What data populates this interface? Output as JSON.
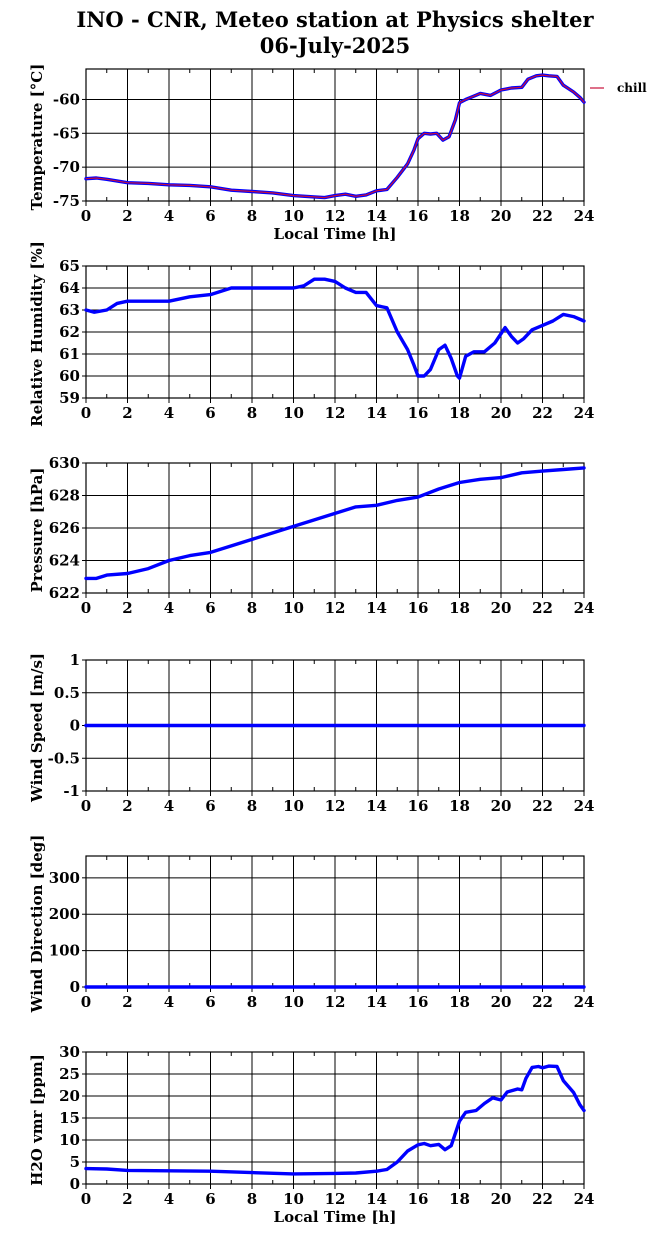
{
  "title": {
    "line1": "INO - CNR, Meteo station at Physics shelter",
    "line2": "06-July-2025"
  },
  "colors": {
    "series_main": "#0000ff",
    "series_chill": "#c8103a",
    "grid": "#000000"
  },
  "chart_data": [
    {
      "type": "line",
      "ylabel": "Temperature [°C]",
      "xlabel": "Local Time [h]",
      "xlim": [
        0,
        24
      ],
      "ylim": [
        -75,
        -55.5
      ],
      "xticks": [
        0,
        2,
        4,
        6,
        8,
        10,
        12,
        14,
        16,
        18,
        20,
        22,
        24
      ],
      "yticks": [
        -75,
        -70,
        -65,
        -60
      ],
      "legend": {
        "position": "right",
        "entries": [
          "chill"
        ]
      },
      "grid": true,
      "series": [
        {
          "color": "#0000ff",
          "x": [
            0,
            0.5,
            1,
            2,
            3,
            4,
            5,
            6,
            7,
            8,
            9,
            10,
            11,
            11.5,
            12,
            12.5,
            13,
            13.5,
            14,
            14.5,
            15,
            15.5,
            15.8,
            16,
            16.3,
            16.6,
            16.9,
            17.2,
            17.5,
            17.8,
            18,
            18.3,
            18.7,
            19,
            19.5,
            20,
            20.5,
            21,
            21.3,
            21.7,
            22,
            22.3,
            22.7,
            23,
            23.5,
            23.8,
            24
          ],
          "values": [
            -71.7,
            -71.6,
            -71.8,
            -72.3,
            -72.4,
            -72.6,
            -72.7,
            -72.9,
            -73.4,
            -73.6,
            -73.8,
            -74.2,
            -74.4,
            -74.5,
            -74.2,
            -74.0,
            -74.3,
            -74.1,
            -73.5,
            -73.3,
            -71.5,
            -69.5,
            -67.5,
            -65.8,
            -65.0,
            -65.1,
            -65.0,
            -66.0,
            -65.5,
            -63.0,
            -60.5,
            -60.0,
            -59.5,
            -59.1,
            -59.4,
            -58.6,
            -58.3,
            -58.2,
            -57.0,
            -56.5,
            -56.4,
            -56.5,
            -56.6,
            -57.9,
            -58.9,
            -59.7,
            -60.4
          ]
        },
        {
          "color": "#c8103a",
          "x": [
            0,
            0.5,
            1,
            2,
            3,
            4,
            5,
            6,
            7,
            8,
            9,
            10,
            11,
            11.5,
            12,
            12.5,
            13,
            13.5,
            14,
            14.5,
            15,
            15.5,
            15.8,
            16,
            16.3,
            16.6,
            16.9,
            17.2,
            17.5,
            17.8,
            18,
            18.3,
            18.7,
            19,
            19.5,
            20,
            20.5,
            21,
            21.3,
            21.7,
            22,
            22.3,
            22.7,
            23,
            23.5,
            23.8,
            24
          ],
          "values": [
            -71.7,
            -71.6,
            -71.8,
            -72.3,
            -72.4,
            -72.6,
            -72.7,
            -72.9,
            -73.4,
            -73.6,
            -73.8,
            -74.2,
            -74.4,
            -74.5,
            -74.2,
            -74.0,
            -74.3,
            -74.1,
            -73.5,
            -73.3,
            -71.5,
            -69.5,
            -67.5,
            -65.8,
            -65.0,
            -65.1,
            -65.0,
            -66.0,
            -65.5,
            -63.0,
            -60.5,
            -60.0,
            -59.5,
            -59.1,
            -59.4,
            -58.6,
            -58.3,
            -58.2,
            -57.0,
            -56.5,
            -56.4,
            -56.5,
            -56.6,
            -57.9,
            -58.9,
            -59.7,
            -60.4
          ]
        }
      ]
    },
    {
      "type": "line",
      "ylabel": "Relative Humidity [%]",
      "xlabel": "",
      "xlim": [
        0,
        24
      ],
      "ylim": [
        59,
        65
      ],
      "xticks": [
        0,
        2,
        4,
        6,
        8,
        10,
        12,
        14,
        16,
        18,
        20,
        22,
        24
      ],
      "yticks": [
        59,
        60,
        61,
        62,
        63,
        64,
        65
      ],
      "grid": true,
      "series": [
        {
          "color": "#0000ff",
          "x": [
            0,
            0.4,
            1,
            1.5,
            2,
            3,
            4,
            5,
            6,
            7,
            8,
            9,
            10,
            10.5,
            11,
            11.5,
            12,
            12.5,
            13,
            13.5,
            14,
            14.5,
            15,
            15.5,
            15.8,
            16,
            16.3,
            16.6,
            17,
            17.3,
            17.6,
            17.9,
            18,
            18.3,
            18.7,
            19.2,
            19.7,
            20.2,
            20.5,
            20.8,
            21.1,
            21.5,
            22,
            22.5,
            23,
            23.5,
            24
          ],
          "values": [
            63.0,
            62.9,
            63.0,
            63.3,
            63.4,
            63.4,
            63.4,
            63.6,
            63.7,
            64.0,
            64.0,
            64.0,
            64.0,
            64.1,
            64.4,
            64.4,
            64.3,
            64.0,
            63.8,
            63.8,
            63.2,
            63.1,
            62.0,
            61.2,
            60.5,
            60.0,
            60.0,
            60.3,
            61.2,
            61.4,
            60.8,
            60.0,
            59.9,
            60.9,
            61.1,
            61.1,
            61.5,
            62.2,
            61.8,
            61.5,
            61.7,
            62.1,
            62.3,
            62.5,
            62.8,
            62.7,
            62.5
          ]
        }
      ]
    },
    {
      "type": "line",
      "ylabel": "Pressure [hPa]",
      "xlabel": "",
      "xlim": [
        0,
        24
      ],
      "ylim": [
        622,
        630
      ],
      "xticks": [
        0,
        2,
        4,
        6,
        8,
        10,
        12,
        14,
        16,
        18,
        20,
        22,
        24
      ],
      "yticks": [
        622,
        624,
        626,
        628,
        630
      ],
      "grid": true,
      "series": [
        {
          "color": "#0000ff",
          "x": [
            0,
            0.5,
            1,
            2,
            3,
            4,
            5,
            6,
            7,
            8,
            9,
            10,
            11,
            12,
            13,
            14,
            15,
            16,
            17,
            18,
            19,
            20,
            21,
            22,
            23,
            24
          ],
          "values": [
            622.9,
            622.9,
            623.1,
            623.2,
            623.5,
            624.0,
            624.3,
            624.5,
            624.9,
            625.3,
            625.7,
            626.1,
            626.5,
            626.9,
            627.3,
            627.4,
            627.7,
            627.9,
            628.4,
            628.8,
            629.0,
            629.1,
            629.4,
            629.5,
            629.6,
            629.7
          ]
        }
      ]
    },
    {
      "type": "line",
      "ylabel": "Wind Speed [m/s]",
      "xlabel": "",
      "xlim": [
        0,
        24
      ],
      "ylim": [
        -1,
        1
      ],
      "xticks": [
        0,
        2,
        4,
        6,
        8,
        10,
        12,
        14,
        16,
        18,
        20,
        22,
        24
      ],
      "yticks": [
        -1,
        -0.5,
        0,
        0.5,
        1
      ],
      "grid": true,
      "series": [
        {
          "color": "#0000ff",
          "x": [
            0,
            24
          ],
          "values": [
            0,
            0
          ]
        }
      ]
    },
    {
      "type": "line",
      "ylabel": "Wind Direction [deg]",
      "xlabel": "",
      "xlim": [
        0,
        24
      ],
      "ylim": [
        0,
        360
      ],
      "xticks": [
        0,
        2,
        4,
        6,
        8,
        10,
        12,
        14,
        16,
        18,
        20,
        22,
        24
      ],
      "yticks": [
        0,
        100,
        200,
        300
      ],
      "grid": true,
      "series": [
        {
          "color": "#0000ff",
          "x": [
            0,
            24
          ],
          "values": [
            0,
            0
          ]
        }
      ]
    },
    {
      "type": "line",
      "ylabel": "H2O vmr [ppm]",
      "xlabel": "Local Time [h]",
      "xlim": [
        0,
        24
      ],
      "ylim": [
        0,
        30
      ],
      "xticks": [
        0,
        2,
        4,
        6,
        8,
        10,
        12,
        14,
        16,
        18,
        20,
        22,
        24
      ],
      "yticks": [
        0,
        5,
        10,
        15,
        20,
        25,
        30
      ],
      "grid": true,
      "series": [
        {
          "color": "#0000ff",
          "x": [
            0,
            1,
            2,
            4,
            6,
            8,
            10,
            12,
            13,
            14,
            14.5,
            15,
            15.5,
            16,
            16.3,
            16.6,
            17,
            17.3,
            17.6,
            18,
            18.3,
            18.8,
            19.2,
            19.6,
            20,
            20.3,
            20.8,
            21,
            21.2,
            21.5,
            21.8,
            22,
            22.3,
            22.7,
            23,
            23.5,
            23.8,
            24
          ],
          "values": [
            3.5,
            3.4,
            3.1,
            3.0,
            2.9,
            2.6,
            2.3,
            2.4,
            2.5,
            2.9,
            3.3,
            5.0,
            7.5,
            8.9,
            9.2,
            8.7,
            9.0,
            7.8,
            8.7,
            14.3,
            16.3,
            16.7,
            18.3,
            19.6,
            19.1,
            20.9,
            21.6,
            21.4,
            24.0,
            26.5,
            26.7,
            26.4,
            26.8,
            26.7,
            23.5,
            20.8,
            18.0,
            16.7
          ]
        }
      ]
    }
  ]
}
